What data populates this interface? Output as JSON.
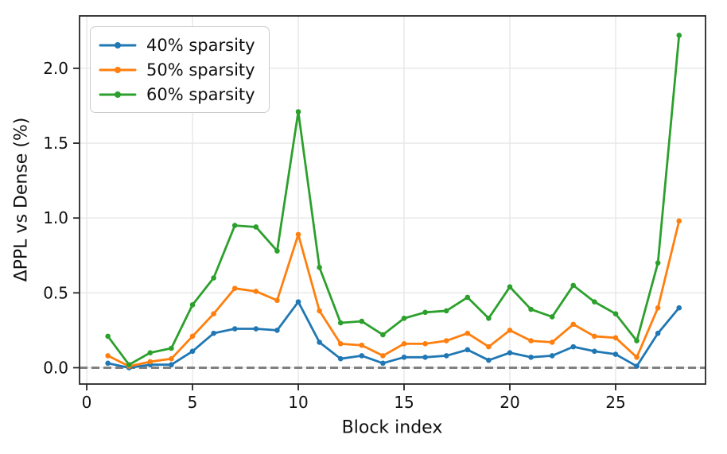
{
  "figure": {
    "background": "#ffffff"
  },
  "chart_data": {
    "type": "line",
    "title": "",
    "xlabel": "Block index",
    "ylabel": "ΔPPL vs Dense (%)",
    "x": [
      1,
      2,
      3,
      4,
      5,
      6,
      7,
      8,
      9,
      10,
      11,
      12,
      13,
      14,
      15,
      16,
      17,
      18,
      19,
      20,
      21,
      22,
      23,
      24,
      25,
      26,
      27,
      28
    ],
    "series": [
      {
        "name": "40% sparsity",
        "color": "#1f77b4",
        "values": [
          0.03,
          0.0,
          0.02,
          0.02,
          0.11,
          0.23,
          0.26,
          0.26,
          0.25,
          0.44,
          0.17,
          0.06,
          0.08,
          0.03,
          0.07,
          0.07,
          0.08,
          0.12,
          0.05,
          0.1,
          0.07,
          0.08,
          0.14,
          0.11,
          0.09,
          0.01,
          0.23,
          0.4
        ]
      },
      {
        "name": "50% sparsity",
        "color": "#ff7f0e",
        "values": [
          0.08,
          0.01,
          0.04,
          0.06,
          0.21,
          0.36,
          0.53,
          0.51,
          0.45,
          0.89,
          0.38,
          0.16,
          0.15,
          0.08,
          0.16,
          0.16,
          0.18,
          0.23,
          0.14,
          0.25,
          0.18,
          0.17,
          0.29,
          0.21,
          0.2,
          0.07,
          0.4,
          0.98
        ]
      },
      {
        "name": "60% sparsity",
        "color": "#2ca02c",
        "values": [
          0.21,
          0.02,
          0.1,
          0.13,
          0.42,
          0.6,
          0.95,
          0.94,
          0.78,
          1.71,
          0.67,
          0.3,
          0.31,
          0.22,
          0.33,
          0.37,
          0.38,
          0.47,
          0.33,
          0.54,
          0.39,
          0.34,
          0.55,
          0.44,
          0.36,
          0.18,
          0.7,
          2.22
        ]
      }
    ],
    "x_ticks": {
      "values": [
        0,
        5,
        10,
        15,
        20,
        25
      ],
      "labels": [
        "0",
        "5",
        "10",
        "15",
        "20",
        "25"
      ]
    },
    "y_ticks": {
      "values": [
        0.0,
        0.5,
        1.0,
        1.5,
        2.0
      ],
      "labels": [
        "0.0",
        "0.5",
        "1.0",
        "1.5",
        "2.0"
      ]
    },
    "xlim": [
      -0.34,
      29.25
    ],
    "ylim": [
      -0.109,
      2.35
    ],
    "grid": true,
    "legend": {
      "position": "upper-left"
    },
    "reference_line": {
      "y": 0.0,
      "style": "dashed",
      "color": "#808080"
    },
    "marker": "circle"
  },
  "colors": {
    "grid": "#e7e7e7",
    "spine": "#262626",
    "tick_text": "#111111"
  }
}
